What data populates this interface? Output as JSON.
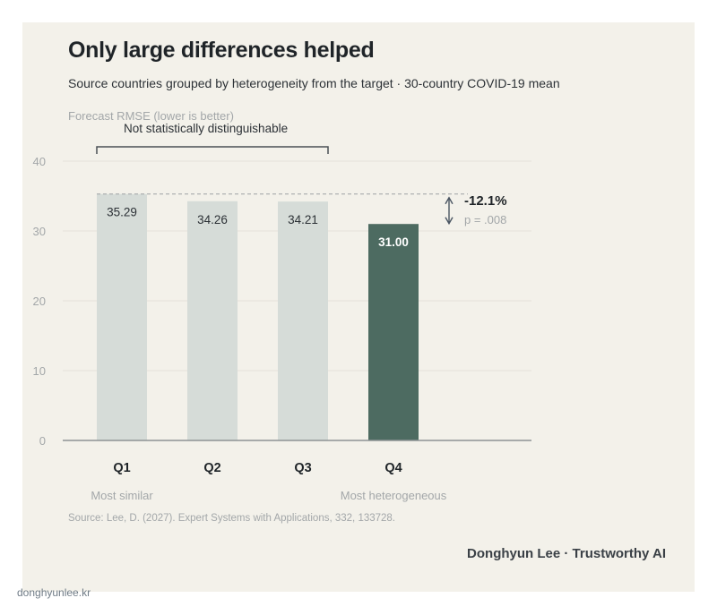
{
  "site": "donghyunlee.kr",
  "header": {
    "title": "Only large differences helped",
    "subtitle": "Source countries grouped by heterogeneity from the target · 30-country COVID-19 mean",
    "axis_title": "Forecast RMSE (lower is better)"
  },
  "footer": {
    "source": "Source: Lee, D. (2027). Expert Systems with Applications, 332, 133728.",
    "byline": "Donghyun Lee · Trustworthy AI"
  },
  "colors": {
    "bar_default": "#d6dcd8",
    "bar_highlight": "#4d6b61",
    "gridline": "#e4e1da",
    "axis": "#8e9395",
    "text_dark": "#1f2428",
    "text_muted": "#a3a7a9"
  },
  "chart_data": {
    "type": "bar",
    "categories": [
      "Q1",
      "Q2",
      "Q3",
      "Q4"
    ],
    "values": [
      35.29,
      34.26,
      34.21,
      31.0
    ],
    "value_labels": [
      "35.29",
      "34.26",
      "34.21",
      "31.00"
    ],
    "highlight_index": 3,
    "category_notes": [
      {
        "category": "Q1",
        "text": "Most similar"
      },
      {
        "category": "Q4",
        "text": "Most heterogeneous"
      }
    ],
    "ylim": [
      0,
      40
    ],
    "yticks": [
      0,
      10,
      20,
      30,
      40
    ],
    "ytick_labels": [
      "0",
      "10",
      "20",
      "30",
      "40"
    ],
    "grid": true,
    "annotations": {
      "bracket": {
        "from": "Q1",
        "to": "Q3",
        "text": "Not statistically distinguishable"
      },
      "difference": {
        "from_value": 35.29,
        "to_value": 31.0,
        "text": "-12.1%",
        "pvalue": "p = .008"
      }
    }
  }
}
